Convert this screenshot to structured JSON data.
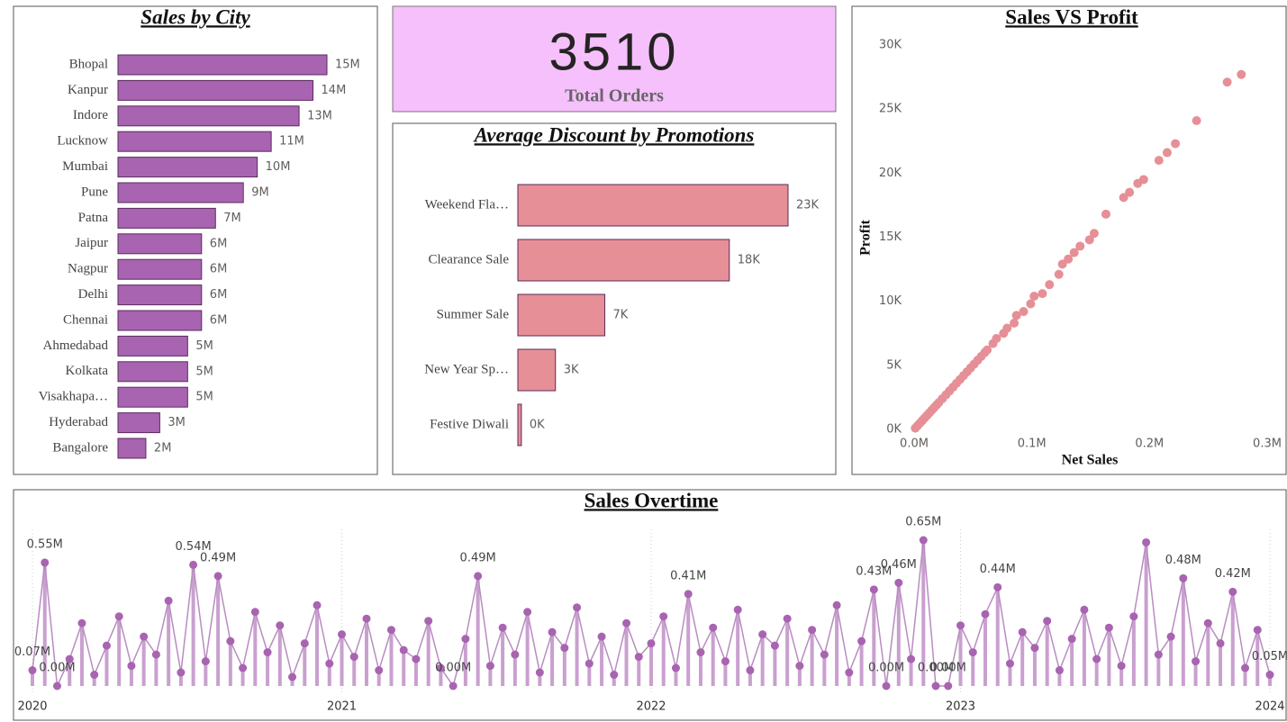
{
  "chart_data": [
    {
      "type": "bar",
      "title": "Sales by City",
      "horizontal": true,
      "color": "#a864b0",
      "categories": [
        "Bhopal",
        "Kanpur",
        "Indore",
        "Lucknow",
        "Mumbai",
        "Pune",
        "Patna",
        "Jaipur",
        "Nagpur",
        "Delhi",
        "Chennai",
        "Ahmedabad",
        "Kolkata",
        "Visakhapa…",
        "Hyderabad",
        "Bangalore"
      ],
      "values": [
        15,
        14,
        13,
        11,
        10,
        9,
        7,
        6,
        6,
        6,
        6,
        5,
        5,
        5,
        3,
        2
      ],
      "value_labels": [
        "15M",
        "14M",
        "13M",
        "11M",
        "10M",
        "9M",
        "7M",
        "6M",
        "6M",
        "6M",
        "6M",
        "5M",
        "5M",
        "5M",
        "3M",
        "2M"
      ]
    },
    {
      "type": "card",
      "value": 3510,
      "label": "Total Orders",
      "color": "#f5c0fb"
    },
    {
      "type": "bar",
      "title": "Average Discount by Promotions",
      "horizontal": true,
      "color": "#e68f96",
      "categories": [
        "Weekend Fla…",
        "Clearance Sale",
        "Summer Sale",
        "New Year Sp…",
        "Festive Diwali"
      ],
      "values": [
        23,
        18,
        7.4,
        3.2,
        0.3
      ],
      "value_labels": [
        "23K",
        "18K",
        "7K",
        "3K",
        "0K"
      ]
    },
    {
      "type": "scatter",
      "title": "Sales VS Profit",
      "x_label": "Net Sales",
      "y_label": "Profit",
      "color": "#e68f96",
      "x": [
        0.001,
        0.003,
        0.005,
        0.007,
        0.009,
        0.011,
        0.013,
        0.015,
        0.017,
        0.019,
        0.021,
        0.024,
        0.027,
        0.03,
        0.033,
        0.036,
        0.039,
        0.042,
        0.045,
        0.048,
        0.051,
        0.054,
        0.057,
        0.06,
        0.062,
        0.067,
        0.07,
        0.076,
        0.079,
        0.085,
        0.087,
        0.093,
        0.099,
        0.102,
        0.109,
        0.115,
        0.123,
        0.126,
        0.131,
        0.136,
        0.141,
        0.149,
        0.153,
        0.163,
        0.178,
        0.183,
        0.19,
        0.195,
        0.208,
        0.215,
        0.222,
        0.24,
        0.266,
        0.278
      ],
      "values": [
        0.1,
        0.3,
        0.5,
        0.7,
        0.9,
        1.1,
        1.3,
        1.5,
        1.7,
        1.9,
        2.1,
        2.4,
        2.7,
        3.0,
        3.3,
        3.6,
        3.9,
        4.2,
        4.5,
        4.8,
        5.1,
        5.4,
        5.7,
        6.0,
        6.2,
        6.7,
        7.1,
        7.5,
        7.9,
        8.3,
        8.9,
        9.2,
        9.8,
        10.4,
        10.6,
        11.3,
        12.1,
        12.9,
        13.3,
        13.8,
        14.3,
        14.8,
        15.3,
        16.8,
        18.1,
        18.5,
        19.2,
        19.5,
        21.0,
        21.6,
        22.3,
        24.1,
        27.1,
        27.7
      ],
      "xlim": [
        0,
        0.3
      ],
      "ylim": [
        0,
        30
      ],
      "xticks": [
        {
          "value": 0,
          "label": "0.0M"
        },
        {
          "value": 0.1,
          "label": "0.1M"
        },
        {
          "value": 0.2,
          "label": "0.2M"
        },
        {
          "value": 0.3,
          "label": "0.3M"
        }
      ],
      "yticks": [
        {
          "value": 0,
          "label": "0K"
        },
        {
          "value": 5,
          "label": "5K"
        },
        {
          "value": 10,
          "label": "10K"
        },
        {
          "value": 15,
          "label": "15K"
        },
        {
          "value": 20,
          "label": "20K"
        },
        {
          "value": 25,
          "label": "25K"
        },
        {
          "value": 30,
          "label": "30K"
        }
      ]
    },
    {
      "type": "line",
      "title": "Sales Overtime",
      "color": "#a864b0",
      "grid": true,
      "x": [
        2020,
        2020.04,
        2020.08,
        2020.12,
        2020.16,
        2020.2,
        2020.24,
        2020.28,
        2020.32,
        2020.36,
        2020.4,
        2020.44,
        2020.48,
        2020.52,
        2020.56,
        2020.6,
        2020.64,
        2020.68,
        2020.72,
        2020.76,
        2020.8,
        2020.84,
        2020.88,
        2020.92,
        2020.96,
        2021,
        2021.04,
        2021.08,
        2021.12,
        2021.16,
        2021.2,
        2021.24,
        2021.28,
        2021.32,
        2021.36,
        2021.4,
        2021.44,
        2021.48,
        2021.52,
        2021.56,
        2021.6,
        2021.64,
        2021.68,
        2021.72,
        2021.76,
        2021.8,
        2021.84,
        2021.88,
        2021.92,
        2021.96,
        2022,
        2022.04,
        2022.08,
        2022.12,
        2022.16,
        2022.2,
        2022.24,
        2022.28,
        2022.32,
        2022.36,
        2022.4,
        2022.44,
        2022.48,
        2022.52,
        2022.56,
        2022.6,
        2022.64,
        2022.68,
        2022.72,
        2022.76,
        2022.8,
        2022.84,
        2022.88,
        2022.92,
        2022.96,
        2023,
        2023.04,
        2023.08,
        2023.12,
        2023.16,
        2023.2,
        2023.24,
        2023.28,
        2023.32,
        2023.36,
        2023.4,
        2023.44,
        2023.48,
        2023.52,
        2023.56,
        2023.6,
        2023.64,
        2023.68,
        2023.72,
        2023.76,
        2023.8,
        2023.84,
        2023.88,
        2023.92,
        2023.96,
        2024
      ],
      "values": [
        0.07,
        0.55,
        0.0,
        0.12,
        0.28,
        0.05,
        0.18,
        0.31,
        0.09,
        0.22,
        0.14,
        0.38,
        0.06,
        0.54,
        0.11,
        0.49,
        0.2,
        0.08,
        0.33,
        0.15,
        0.27,
        0.04,
        0.19,
        0.36,
        0.1,
        0.23,
        0.13,
        0.3,
        0.07,
        0.25,
        0.16,
        0.12,
        0.29,
        0.08,
        0.0,
        0.21,
        0.49,
        0.09,
        0.26,
        0.14,
        0.33,
        0.06,
        0.24,
        0.17,
        0.35,
        0.1,
        0.22,
        0.05,
        0.28,
        0.13,
        0.19,
        0.31,
        0.08,
        0.41,
        0.15,
        0.26,
        0.11,
        0.34,
        0.07,
        0.23,
        0.18,
        0.3,
        0.09,
        0.25,
        0.14,
        0.36,
        0.06,
        0.2,
        0.43,
        0.0,
        0.46,
        0.12,
        0.65,
        0.0,
        0.0,
        0.27,
        0.15,
        0.32,
        0.44,
        0.1,
        0.24,
        0.17,
        0.29,
        0.07,
        0.21,
        0.34,
        0.12,
        0.26,
        0.09,
        0.31,
        0.64,
        0.14,
        0.22,
        0.48,
        0.11,
        0.28,
        0.19,
        0.42,
        0.08,
        0.25,
        0.05
      ],
      "value_labels": [
        "0.07M",
        "0.55M",
        "0.00M",
        null,
        null,
        null,
        null,
        null,
        null,
        null,
        null,
        null,
        null,
        "0.54M",
        null,
        "0.49M",
        null,
        null,
        null,
        null,
        null,
        null,
        null,
        null,
        null,
        null,
        null,
        null,
        null,
        null,
        null,
        null,
        null,
        null,
        "0.00M",
        null,
        "0.49M",
        null,
        null,
        null,
        null,
        null,
        null,
        null,
        null,
        null,
        null,
        null,
        null,
        null,
        null,
        null,
        null,
        "0.41M",
        null,
        null,
        null,
        null,
        null,
        null,
        null,
        null,
        null,
        null,
        null,
        null,
        null,
        null,
        "0.43M",
        "0.00M",
        "0.46M",
        null,
        "0.65M",
        "0.00M",
        "0.00M",
        null,
        null,
        null,
        "0.44M",
        null,
        null,
        null,
        null,
        null,
        null,
        null,
        null,
        null,
        null,
        null,
        null,
        null,
        null,
        "0.48M",
        null,
        null,
        null,
        "0.42M",
        null,
        null,
        "0.05M"
      ],
      "xlim": [
        2020,
        2024
      ],
      "xticks": [
        2020,
        2021,
        2022,
        2023,
        2024
      ]
    }
  ]
}
